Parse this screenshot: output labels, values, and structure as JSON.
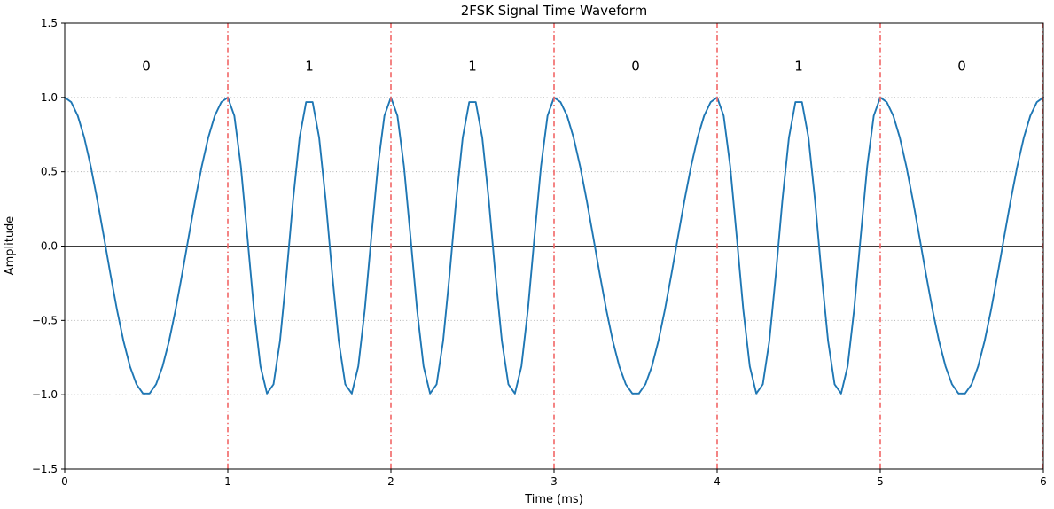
{
  "figure": {
    "title": "2FSK Signal Time Waveform",
    "xlabel": "Time (ms)",
    "ylabel": "Amplitude"
  },
  "chart_data": {
    "type": "line",
    "title": "2FSK Signal Time Waveform",
    "xlabel": "Time (ms)",
    "ylabel": "Amplitude",
    "xlim": [
      0,
      6
    ],
    "ylim": [
      -1.5,
      1.5
    ],
    "xticks": [
      0,
      1,
      2,
      3,
      4,
      5,
      6
    ],
    "xtick_labels": [
      "0",
      "1",
      "2",
      "3",
      "4",
      "5",
      "6"
    ],
    "yticks": [
      -1.5,
      -1.0,
      -0.5,
      0.0,
      0.5,
      1.0,
      1.5
    ],
    "ytick_labels": [
      "−1.5",
      "−1.0",
      "−0.5",
      "0.0",
      "0.5",
      "1.0",
      "1.5"
    ],
    "grid": {
      "visible": true,
      "style": "dotted",
      "color": "#b5b5b5"
    },
    "zero_line": {
      "visible": true,
      "color": "#3a3a3a"
    },
    "signal": {
      "modulation": "2FSK",
      "waveform": "cosine",
      "bits": [
        0,
        1,
        1,
        0,
        1,
        0
      ],
      "bit_labels": [
        "0",
        "1",
        "1",
        "0",
        "1",
        "0"
      ],
      "bit_label_amplitude": 1.21,
      "bit_duration_ms": 1,
      "freq_bit0_cycles_per_ms": 1,
      "freq_bit1_cycles_per_ms": 2,
      "amplitude": 1.0,
      "samples_per_ms": 25,
      "duration_ms": 6,
      "line_color": "#1f77b4"
    },
    "bit_boundaries": {
      "positions_ms": [
        1,
        2,
        3,
        4,
        5,
        6
      ],
      "color": "#f26565",
      "style": "dashdot"
    },
    "legend": null
  }
}
